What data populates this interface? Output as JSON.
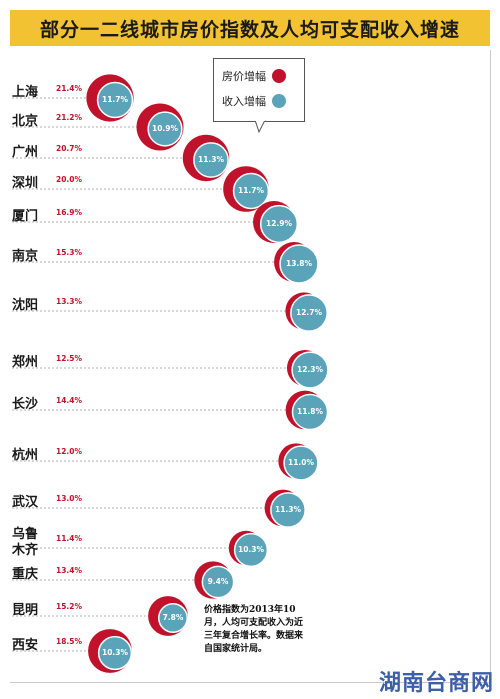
{
  "title": "部分一二线城市房价指数及人均可支配收入增速",
  "legend": [
    {
      "label": "房价增幅",
      "color": "#c0122a"
    },
    {
      "label": "收入增幅",
      "color": "#5ba3b8"
    }
  ],
  "note": "价格指数为2013年10月，人均可支配收入为近三年复合增长率。数据来自国家统计局。",
  "watermark": "湖南台商网",
  "chart_data": {
    "type": "scatter",
    "series": [
      {
        "name": "房价增幅",
        "values": [
          21.4,
          21.2,
          20.7,
          20.0,
          16.9,
          15.3,
          13.3,
          12.5,
          14.4,
          12.0,
          13.0,
          11.4,
          13.4,
          15.2,
          18.5
        ]
      },
      {
        "name": "收入增幅",
        "values": [
          11.7,
          10.9,
          11.3,
          11.7,
          12.9,
          13.8,
          12.7,
          12.3,
          11.8,
          11.0,
          11.3,
          10.3,
          9.4,
          7.8,
          10.3
        ]
      }
    ],
    "categories": [
      "上海",
      "北京",
      "广州",
      "深圳",
      "厦门",
      "南京",
      "沈阳",
      "郑州",
      "长沙",
      "杭州",
      "武汉",
      "乌鲁木齐",
      "重庆",
      "昆明",
      "西安"
    ],
    "city_labels": [
      "上海",
      "北京",
      "广州",
      "深圳",
      "厦门",
      "南京",
      "沈阳",
      "郑州",
      "长沙",
      "杭州",
      "武汉",
      "乌鲁\n木齐",
      "重庆",
      "昆明",
      "西安"
    ],
    "left_labels": [
      "21.4%",
      "21.2%",
      "20.7%",
      "20.0%",
      "16.9%",
      "15.3%",
      "13.3%",
      "12.5%",
      "14.4%",
      "12.0%",
      "13.0%",
      "11.4%",
      "13.4%",
      "15.2%",
      "18.5%"
    ],
    "inner_labels": [
      "11.7%",
      "10.9%",
      "11.3%",
      "11.7%",
      "12.9%",
      "13.8%",
      "12.7%",
      "12.3%",
      "11.8%",
      "11.0%",
      "11.3%",
      "10.3%",
      "9.4%",
      "7.8%",
      "10.3%"
    ]
  }
}
